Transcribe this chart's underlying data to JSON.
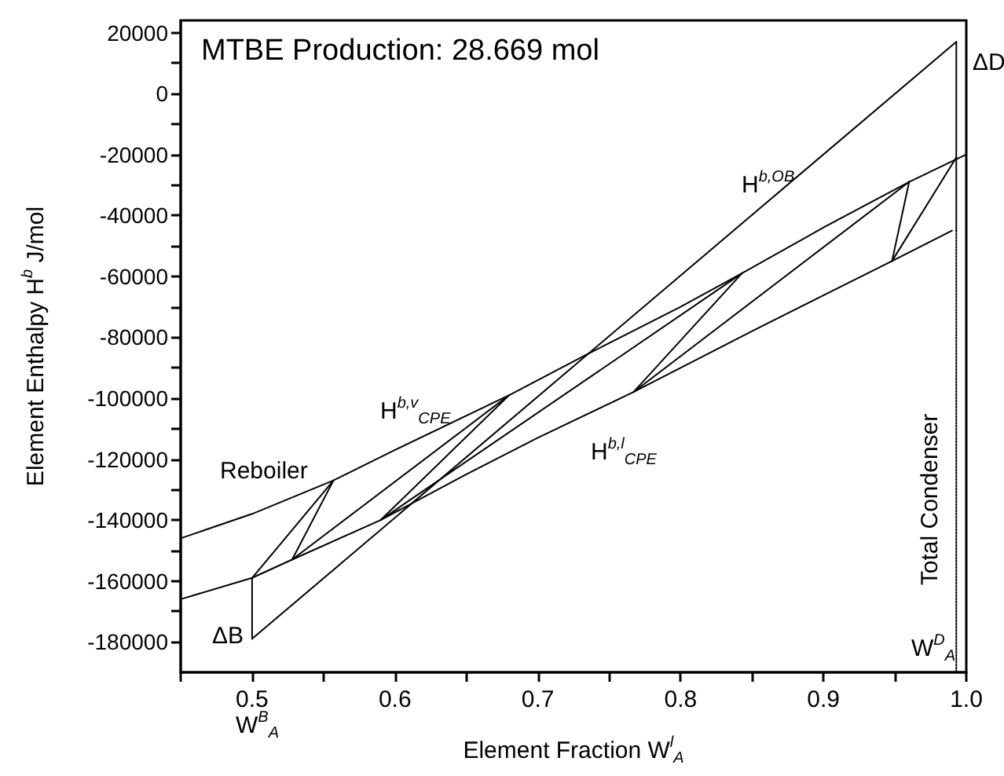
{
  "chart_data": {
    "type": "line",
    "title": "MTBE Production: 28.669 mol",
    "xlabel": "Element Fraction W$^{l}$$_{A}$",
    "ylabel": "Element Enthalpy H$^{b}$ J/mol",
    "xlim": [
      0.45,
      1.0
    ],
    "xticks": [
      {
        "value": 0.45,
        "label": null
      },
      0.5,
      {
        "value": 0.55,
        "label": null
      },
      0.6,
      {
        "value": 0.65,
        "label": null
      },
      0.7,
      {
        "value": 0.75,
        "label": null
      },
      0.8,
      {
        "value": 0.85,
        "label": null
      },
      0.9,
      {
        "value": 0.95,
        "label": null
      },
      {
        "value": 1.0,
        "label": "1.0"
      }
    ],
    "ylim": [
      -190000,
      24000
    ],
    "yticks": [
      -180000,
      {
        "value": -170000,
        "label": null
      },
      -160000,
      {
        "value": -150000,
        "label": null
      },
      -140000,
      {
        "value": -130000,
        "label": null
      },
      -120000,
      {
        "value": -110000,
        "label": null
      },
      -100000,
      {
        "value": -90000,
        "label": null
      },
      -80000,
      {
        "value": -70000,
        "label": null
      },
      -60000,
      {
        "value": -50000,
        "label": null
      },
      -40000,
      {
        "value": -30000,
        "label": null
      },
      -20000,
      {
        "value": -10000,
        "label": null
      },
      0,
      {
        "value": 10000,
        "label": null
      },
      20000
    ],
    "series": [
      {
        "color": "#000000",
        "x": [
          0.45,
          0.5,
          0.557,
          0.6,
          0.68,
          0.735,
          0.8,
          0.843,
          0.9,
          0.96,
          1.0
        ],
        "values": [
          -146000,
          -138000,
          -127000,
          -117000,
          -99000,
          -85500,
          -70000,
          -59000,
          -44000,
          -29000,
          -20000
        ]
      },
      {
        "color": "#000000",
        "x": [
          0.45,
          0.5,
          0.528,
          0.59,
          0.65,
          0.7,
          0.767,
          0.85,
          0.948,
          0.99
        ],
        "values": [
          -166000,
          -159000,
          -153000,
          -140000,
          -125000,
          -113000,
          -98000,
          -78000,
          -55000,
          -45000
        ]
      },
      {
        "color": "#000000",
        "x": [
          0.5,
          0.993
        ],
        "values": [
          -179000,
          17000
        ]
      },
      {
        "color": "#000000",
        "x": [
          0.5,
          0.5
        ],
        "values": [
          -179000,
          -159000
        ]
      },
      {
        "color": "#000000",
        "x": [
          0.5,
          0.557
        ],
        "values": [
          -159000,
          -127000
        ]
      },
      {
        "color": "#000000",
        "x": [
          0.557,
          0.528
        ],
        "values": [
          -127000,
          -153000
        ]
      },
      {
        "color": "#000000",
        "x": [
          0.528,
          0.68
        ],
        "values": [
          -153000,
          -99000
        ]
      },
      {
        "color": "#000000",
        "x": [
          0.68,
          0.59
        ],
        "values": [
          -99000,
          -140000
        ]
      },
      {
        "color": "#000000",
        "x": [
          0.59,
          0.843
        ],
        "values": [
          -140000,
          -59000
        ]
      },
      {
        "color": "#000000",
        "x": [
          0.843,
          0.767
        ],
        "values": [
          -59000,
          -98000
        ]
      },
      {
        "color": "#000000",
        "x": [
          0.767,
          0.96
        ],
        "values": [
          -98000,
          -29000
        ]
      },
      {
        "color": "#000000",
        "x": [
          0.96,
          0.948
        ],
        "values": [
          -29000,
          -55000
        ]
      },
      {
        "color": "#000000",
        "x": [
          0.948,
          0.993
        ],
        "values": [
          -55000,
          -21000
        ]
      },
      {
        "color": "#000000",
        "x": [
          0.993,
          0.993
        ],
        "values": [
          17000,
          -45000
        ]
      },
      {
        "color": "#000000",
        "line_style": "dotted",
        "x": [
          0.993,
          0.993
        ],
        "values": [
          -45000,
          -190000
        ]
      }
    ],
    "annotations": [
      "H$^{b,OB}$",
      "H$^{b,v}$$_{CPE}$",
      "H$^{b,l}$$_{CPE}$",
      "Reboiler",
      "ΔB",
      "Total Condenser",
      "W$^{D}$$_{A}$",
      "W$^{B}$$_{A}$",
      "ΔD"
    ]
  }
}
